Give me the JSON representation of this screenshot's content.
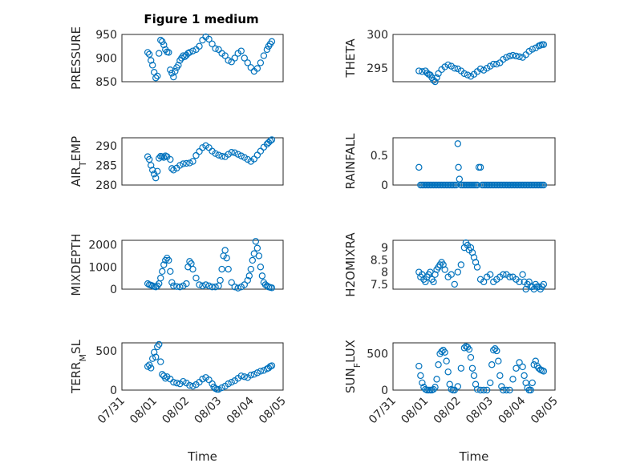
{
  "figure_title": "Figure 1 medium",
  "colors": {
    "marker": "#0072bd",
    "axis": "#262626",
    "grid": "#dfdfdf"
  },
  "chart_data": [
    {
      "type": "scatter",
      "ylabel": "PRESSURE",
      "ylim": [
        850,
        950
      ],
      "yticks": [
        850,
        900,
        950
      ],
      "xlim": [
        "07/31",
        "08/05"
      ],
      "grid": true,
      "x": [
        0.8,
        0.85,
        0.9,
        0.95,
        1.0,
        1.05,
        1.1,
        1.15,
        1.2,
        1.25,
        1.3,
        1.35,
        1.4,
        1.45,
        1.5,
        1.55,
        1.6,
        1.65,
        1.7,
        1.75,
        1.8,
        1.85,
        1.9,
        1.95,
        2.0,
        2.05,
        2.1,
        2.2,
        2.3,
        2.4,
        2.5,
        2.6,
        2.7,
        2.8,
        2.9,
        3.0,
        3.1,
        3.2,
        3.3,
        3.4,
        3.5,
        3.6,
        3.7,
        3.8,
        3.9,
        4.0,
        4.1,
        4.2,
        4.3,
        4.4,
        4.5,
        4.55,
        4.6,
        4.65
      ],
      "values": [
        912,
        908,
        895,
        885,
        870,
        858,
        862,
        910,
        938,
        935,
        928,
        918,
        913,
        912,
        875,
        868,
        860,
        872,
        880,
        885,
        895,
        900,
        905,
        903,
        906,
        910,
        912,
        915,
        918,
        925,
        938,
        945,
        940,
        930,
        920,
        918,
        910,
        905,
        895,
        892,
        900,
        910,
        915,
        900,
        890,
        880,
        872,
        878,
        890,
        905,
        918,
        925,
        930,
        935
      ]
    },
    {
      "type": "scatter",
      "ylabel": "THETA",
      "ylim": [
        293,
        300
      ],
      "yticks": [
        295,
        300
      ],
      "xlim": [
        "07/31",
        "08/05"
      ],
      "grid": true,
      "x": [
        0.8,
        0.9,
        1.0,
        1.05,
        1.1,
        1.15,
        1.2,
        1.25,
        1.3,
        1.35,
        1.4,
        1.5,
        1.6,
        1.7,
        1.8,
        1.9,
        2.0,
        2.1,
        2.2,
        2.3,
        2.4,
        2.5,
        2.6,
        2.7,
        2.8,
        2.9,
        3.0,
        3.1,
        3.2,
        3.3,
        3.4,
        3.5,
        3.6,
        3.7,
        3.8,
        3.9,
        4.0,
        4.1,
        4.2,
        4.3,
        4.4,
        4.5,
        4.55,
        4.6,
        4.65
      ],
      "values": [
        294.6,
        294.5,
        294.6,
        294.3,
        294.1,
        294.0,
        293.6,
        293.2,
        293.0,
        293.6,
        294.2,
        294.8,
        295.2,
        295.5,
        295.3,
        295.0,
        294.9,
        294.6,
        294.2,
        294.0,
        293.8,
        294.1,
        294.5,
        294.9,
        294.7,
        295.0,
        295.3,
        295.6,
        295.6,
        295.8,
        296.3,
        296.6,
        296.8,
        296.9,
        296.8,
        296.7,
        296.6,
        297.0,
        297.5,
        297.8,
        298.0,
        298.3,
        298.4,
        298.5,
        298.5
      ]
    },
    {
      "type": "scatter",
      "ylabel": "AIR_TEMP",
      "ylim": [
        280,
        292
      ],
      "yticks": [
        280,
        285,
        290
      ],
      "xlim": [
        "07/31",
        "08/05"
      ],
      "grid": true,
      "x": [
        0.8,
        0.85,
        0.9,
        0.95,
        1.0,
        1.05,
        1.1,
        1.15,
        1.2,
        1.25,
        1.3,
        1.35,
        1.4,
        1.5,
        1.55,
        1.6,
        1.7,
        1.8,
        1.9,
        2.0,
        2.1,
        2.2,
        2.3,
        2.4,
        2.5,
        2.6,
        2.7,
        2.8,
        2.9,
        3.0,
        3.1,
        3.2,
        3.3,
        3.4,
        3.5,
        3.6,
        3.7,
        3.8,
        3.9,
        4.0,
        4.1,
        4.2,
        4.3,
        4.4,
        4.5,
        4.55,
        4.6,
        4.65
      ],
      "values": [
        287.2,
        286.5,
        285.0,
        283.8,
        282.8,
        281.8,
        283.5,
        286.8,
        287.3,
        287.2,
        287.0,
        287.4,
        287.2,
        286.5,
        284.2,
        283.8,
        284.3,
        285.0,
        285.4,
        285.5,
        285.6,
        286.0,
        287.5,
        288.5,
        289.5,
        290.0,
        289.5,
        288.6,
        288.0,
        287.6,
        287.3,
        287.2,
        287.8,
        288.3,
        288.2,
        287.8,
        287.4,
        287.0,
        286.5,
        286.0,
        286.6,
        287.6,
        288.6,
        289.6,
        290.4,
        290.8,
        291.2,
        291.5
      ]
    },
    {
      "type": "scatter",
      "ylabel": "RAINFALL",
      "ylim": [
        0,
        0.8
      ],
      "yticks": [
        0,
        0.5
      ],
      "xlim": [
        "07/31",
        "08/05"
      ],
      "grid": true,
      "x": [
        0.8,
        0.85,
        0.9,
        0.95,
        1.0,
        1.05,
        1.1,
        1.15,
        1.2,
        1.25,
        1.3,
        1.35,
        1.4,
        1.45,
        1.5,
        1.55,
        1.6,
        1.65,
        1.7,
        1.75,
        1.8,
        1.85,
        1.9,
        1.95,
        2.0,
        2.02,
        2.05,
        2.1,
        2.15,
        2.2,
        2.25,
        2.3,
        2.35,
        2.4,
        2.45,
        2.5,
        2.55,
        2.6,
        2.65,
        2.7,
        2.75,
        2.8,
        2.85,
        2.9,
        2.95,
        3.0,
        3.05,
        3.1,
        3.15,
        3.2,
        3.25,
        3.3,
        3.35,
        3.4,
        3.45,
        3.5,
        3.55,
        3.6,
        3.65,
        3.7,
        3.75,
        3.8,
        3.85,
        3.9,
        3.95,
        4.0,
        4.05,
        4.1,
        4.15,
        4.2,
        4.25,
        4.3,
        4.35,
        4.4,
        4.45,
        4.5,
        4.55,
        4.6,
        4.65
      ],
      "values": [
        0.3,
        0,
        0,
        0,
        0,
        0,
        0,
        0,
        0,
        0,
        0,
        0,
        0,
        0,
        0,
        0,
        0,
        0,
        0,
        0,
        0,
        0,
        0,
        0,
        0.7,
        0.3,
        0.1,
        0,
        0,
        0,
        0,
        0,
        0,
        0,
        0,
        0,
        0,
        0,
        0.3,
        0.3,
        0,
        0,
        0,
        0,
        0,
        0,
        0,
        0,
        0,
        0,
        0,
        0,
        0,
        0,
        0,
        0,
        0,
        0,
        0,
        0,
        0,
        0,
        0,
        0,
        0,
        0,
        0,
        0,
        0,
        0,
        0,
        0,
        0,
        0,
        0,
        0,
        0,
        0,
        0
      ]
    },
    {
      "type": "scatter",
      "ylabel": "MIXDEPTH",
      "ylim": [
        0,
        2200
      ],
      "yticks": [
        0,
        1000,
        2000
      ],
      "xlim": [
        "07/31",
        "08/05"
      ],
      "grid": true,
      "x": [
        0.8,
        0.85,
        0.9,
        0.95,
        1.0,
        1.05,
        1.1,
        1.15,
        1.2,
        1.25,
        1.3,
        1.35,
        1.4,
        1.45,
        1.5,
        1.55,
        1.6,
        1.7,
        1.8,
        1.9,
        2.0,
        2.05,
        2.1,
        2.15,
        2.2,
        2.3,
        2.4,
        2.5,
        2.6,
        2.7,
        2.8,
        2.9,
        3.0,
        3.05,
        3.1,
        3.15,
        3.2,
        3.25,
        3.3,
        3.4,
        3.5,
        3.6,
        3.7,
        3.8,
        3.9,
        3.95,
        4.0,
        4.05,
        4.1,
        4.15,
        4.2,
        4.25,
        4.3,
        4.35,
        4.4,
        4.45,
        4.5,
        4.55,
        4.6,
        4.65
      ],
      "values": [
        250,
        200,
        180,
        150,
        120,
        100,
        150,
        250,
        500,
        800,
        1100,
        1300,
        1400,
        1300,
        800,
        300,
        150,
        120,
        100,
        150,
        250,
        1000,
        1250,
        1150,
        900,
        500,
        200,
        150,
        200,
        150,
        100,
        100,
        150,
        400,
        900,
        1500,
        1750,
        1400,
        900,
        300,
        100,
        50,
        100,
        200,
        400,
        600,
        900,
        1300,
        1600,
        2150,
        1850,
        1500,
        1000,
        600,
        300,
        200,
        150,
        100,
        80,
        60
      ]
    },
    {
      "type": "scatter",
      "ylabel": "H2OMIXRA",
      "ylim": [
        7.3,
        9.3
      ],
      "yticks": [
        7.5,
        8,
        8.5,
        9
      ],
      "xlim": [
        "07/31",
        "08/05"
      ],
      "grid": true,
      "x": [
        0.8,
        0.85,
        0.9,
        0.95,
        1.0,
        1.05,
        1.1,
        1.15,
        1.2,
        1.25,
        1.3,
        1.35,
        1.4,
        1.45,
        1.5,
        1.55,
        1.6,
        1.7,
        1.8,
        1.9,
        2.0,
        2.1,
        2.2,
        2.25,
        2.3,
        2.35,
        2.4,
        2.45,
        2.5,
        2.55,
        2.6,
        2.7,
        2.8,
        2.9,
        3.0,
        3.1,
        3.2,
        3.3,
        3.4,
        3.5,
        3.6,
        3.7,
        3.8,
        3.9,
        4.0,
        4.05,
        4.1,
        4.15,
        4.2,
        4.25,
        4.3,
        4.35,
        4.4,
        4.45,
        4.5,
        4.55,
        4.6,
        4.65
      ],
      "values": [
        8.0,
        7.8,
        7.9,
        7.7,
        7.6,
        7.8,
        7.9,
        8.0,
        7.7,
        7.6,
        7.9,
        8.1,
        8.2,
        8.3,
        8.4,
        8.3,
        8.1,
        7.8,
        7.9,
        7.5,
        8.0,
        8.3,
        9.0,
        9.2,
        9.1,
        8.9,
        9.0,
        8.8,
        8.6,
        8.4,
        8.2,
        7.7,
        7.6,
        7.8,
        7.9,
        7.6,
        7.7,
        7.8,
        7.9,
        7.9,
        7.8,
        7.8,
        7.7,
        7.6,
        7.9,
        7.6,
        7.3,
        7.5,
        7.6,
        7.4,
        7.4,
        7.3,
        7.5,
        7.4,
        7.4,
        7.3,
        7.4,
        7.5
      ]
    },
    {
      "type": "scatter",
      "ylabel": "TERR_MSL",
      "ylim": [
        0,
        600
      ],
      "yticks": [
        0,
        500
      ],
      "xlim": [
        "07/31",
        "08/05"
      ],
      "xticks": [
        "07/31",
        "08/01",
        "08/02",
        "08/03",
        "08/04",
        "08/05"
      ],
      "xlabel": "Time",
      "grid": true,
      "x": [
        0.8,
        0.85,
        0.9,
        0.95,
        1.0,
        1.05,
        1.1,
        1.15,
        1.2,
        1.25,
        1.3,
        1.35,
        1.4,
        1.5,
        1.6,
        1.7,
        1.8,
        1.9,
        2.0,
        2.1,
        2.2,
        2.3,
        2.4,
        2.5,
        2.6,
        2.7,
        2.8,
        2.85,
        2.9,
        2.95,
        3.0,
        3.1,
        3.2,
        3.3,
        3.4,
        3.5,
        3.6,
        3.7,
        3.8,
        3.9,
        4.0,
        4.1,
        4.2,
        4.3,
        4.4,
        4.5,
        4.55,
        4.6,
        4.65
      ],
      "values": [
        300,
        320,
        280,
        400,
        480,
        420,
        550,
        580,
        360,
        200,
        180,
        150,
        170,
        140,
        100,
        90,
        80,
        110,
        90,
        60,
        50,
        70,
        100,
        140,
        160,
        130,
        80,
        40,
        20,
        10,
        10,
        30,
        50,
        80,
        100,
        120,
        150,
        180,
        170,
        160,
        190,
        200,
        220,
        240,
        250,
        270,
        280,
        300,
        310
      ]
    },
    {
      "type": "scatter",
      "ylabel": "SUN_FLUX",
      "ylim": [
        0,
        650
      ],
      "yticks": [
        0,
        500
      ],
      "xlim": [
        "07/31",
        "08/05"
      ],
      "xticks": [
        "07/31",
        "08/01",
        "08/02",
        "08/03",
        "08/04",
        "08/05"
      ],
      "xlabel": "Time",
      "grid": true,
      "x": [
        0.8,
        0.85,
        0.9,
        0.95,
        1.0,
        1.05,
        1.1,
        1.15,
        1.2,
        1.25,
        1.3,
        1.35,
        1.4,
        1.45,
        1.5,
        1.55,
        1.6,
        1.65,
        1.7,
        1.75,
        1.8,
        1.85,
        1.9,
        2.0,
        2.1,
        2.2,
        2.25,
        2.3,
        2.35,
        2.4,
        2.45,
        2.5,
        2.55,
        2.6,
        2.7,
        2.8,
        2.9,
        3.0,
        3.05,
        3.1,
        3.15,
        3.2,
        3.25,
        3.3,
        3.35,
        3.4,
        3.5,
        3.6,
        3.7,
        3.8,
        3.9,
        4.0,
        4.05,
        4.1,
        4.15,
        4.2,
        4.25,
        4.3,
        4.35,
        4.4,
        4.45,
        4.5,
        4.55,
        4.6,
        4.65
      ],
      "values": [
        330,
        200,
        100,
        40,
        10,
        0,
        0,
        0,
        0,
        10,
        40,
        150,
        350,
        500,
        530,
        550,
        520,
        400,
        250,
        80,
        10,
        0,
        0,
        50,
        300,
        580,
        600,
        590,
        560,
        450,
        300,
        200,
        80,
        10,
        0,
        0,
        0,
        100,
        350,
        550,
        570,
        540,
        400,
        200,
        50,
        0,
        0,
        0,
        150,
        300,
        380,
        320,
        200,
        100,
        30,
        0,
        0,
        100,
        350,
        400,
        330,
        300,
        280,
        270,
        260
      ]
    }
  ]
}
